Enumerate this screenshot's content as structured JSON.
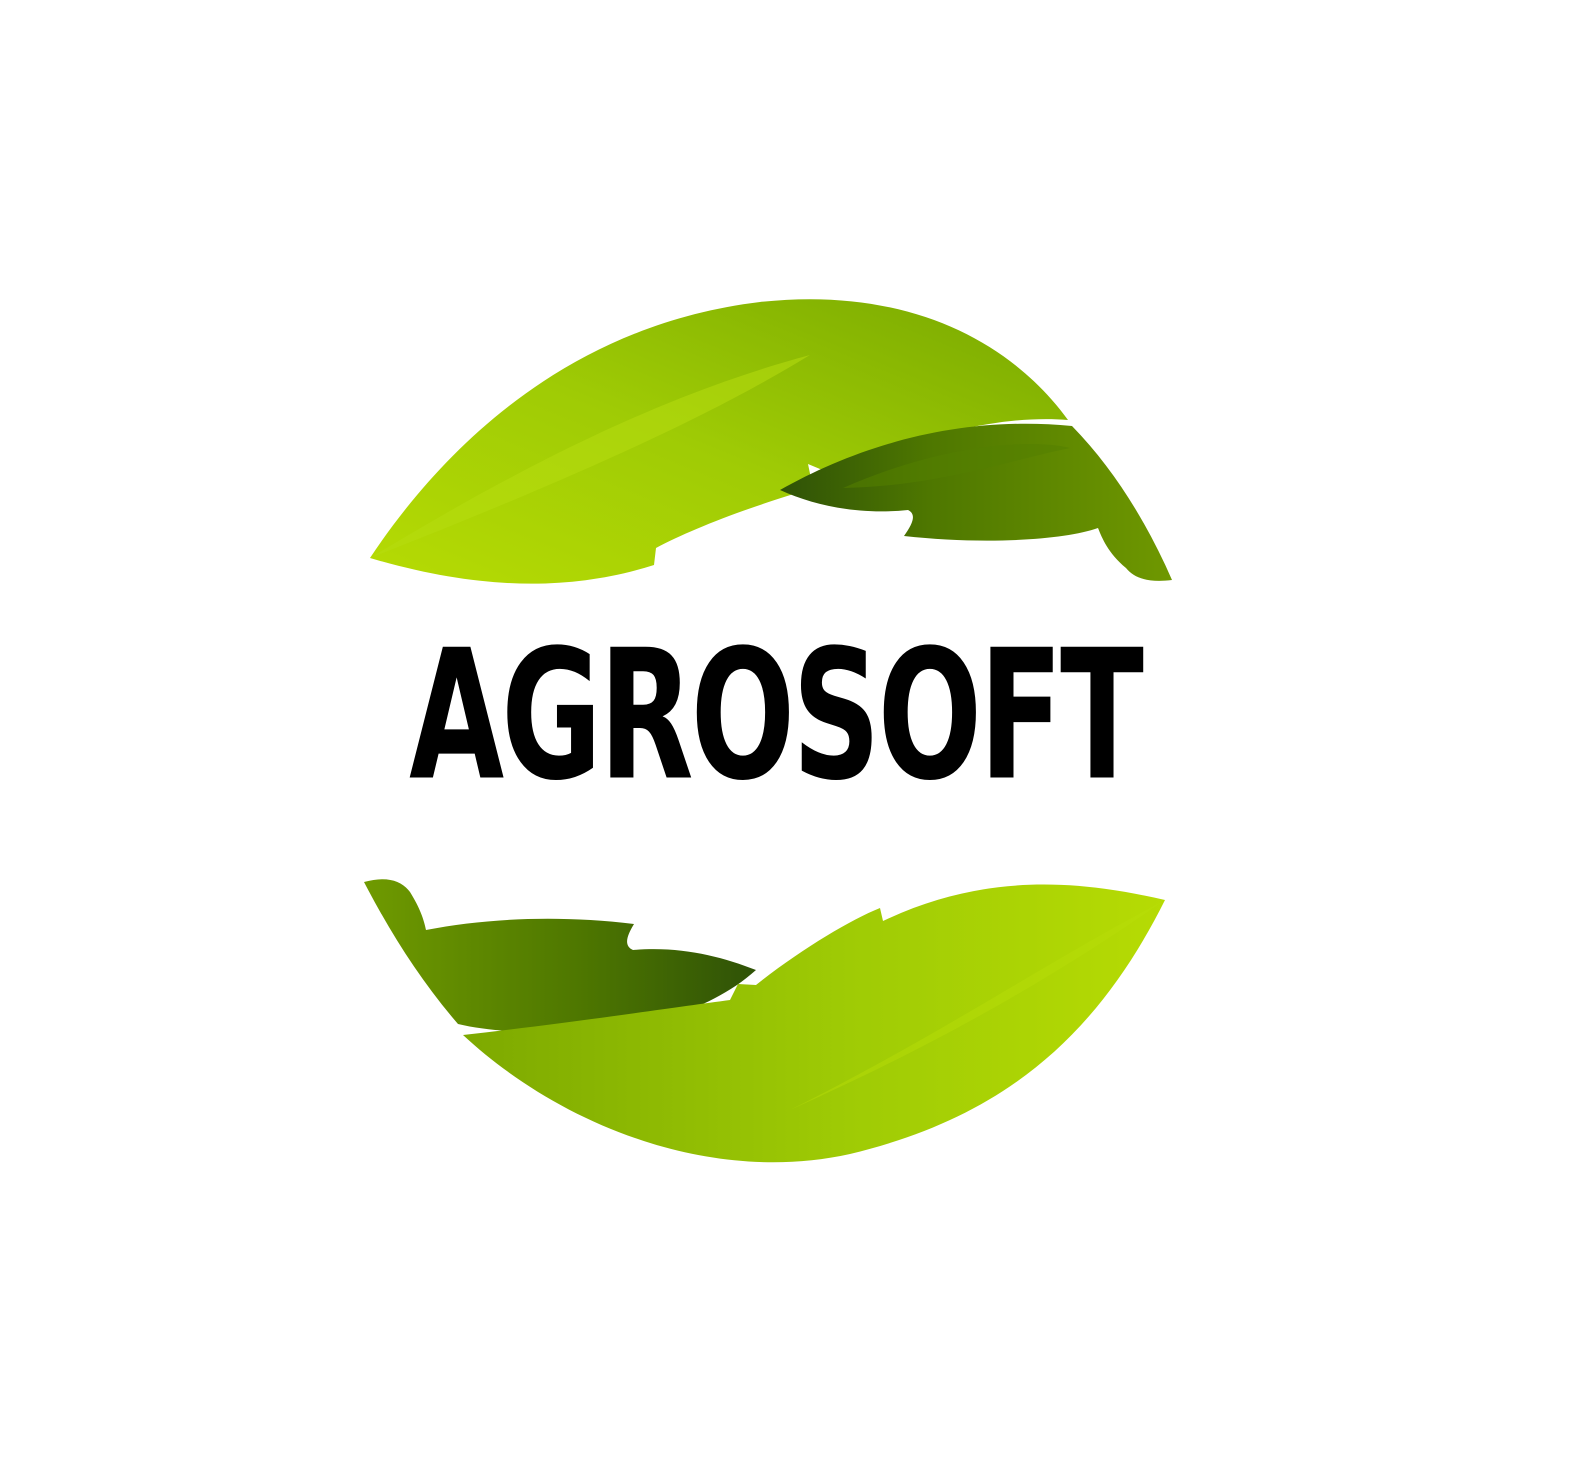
{
  "logo": {
    "wordmark": "AGROSOFT",
    "colors": {
      "background": "#ffffff",
      "text": "#000000",
      "leaf_light": "#b6db04",
      "leaf_mid": "#8fbd08",
      "leaf_dark": "#4e7700",
      "leaf_shadow": "#2f5207"
    },
    "icon": "leaf-globe-icon"
  }
}
